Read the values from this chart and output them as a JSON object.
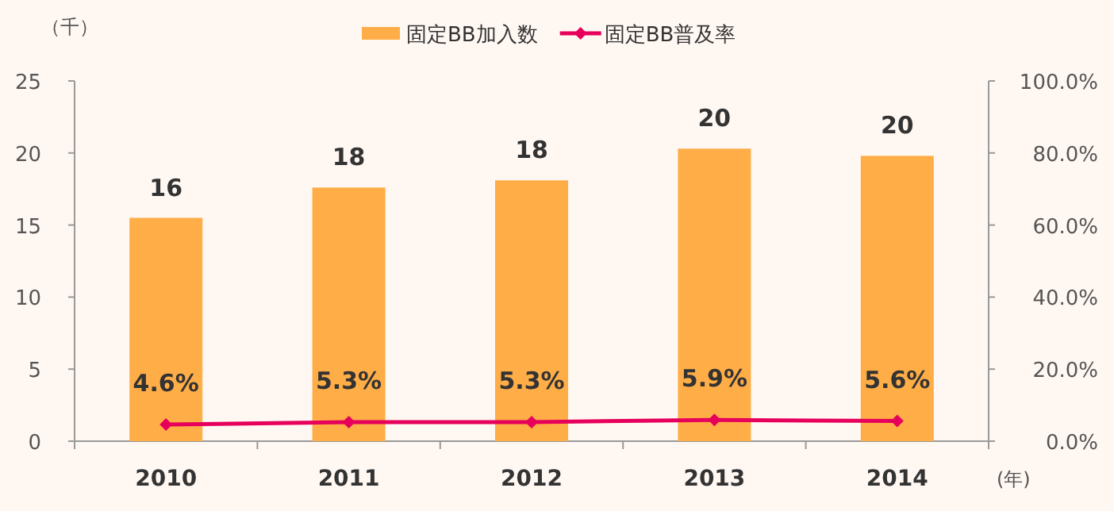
{
  "chart_data": {
    "type": "bar",
    "categories": [
      "2010",
      "2011",
      "2012",
      "2013",
      "2014"
    ],
    "ylabel": "（千）",
    "xlabel": "(年)",
    "series": [
      {
        "name": "固定BB加入数",
        "color": "#ffad47",
        "values": [
          15.5,
          17.6,
          18.1,
          20.3,
          19.8
        ],
        "value_labels": [
          "16",
          "18",
          "18",
          "20",
          "20"
        ]
      },
      {
        "name": "固定BB普及率",
        "type": "line",
        "axis": "y2",
        "color": "#e6005c",
        "marker": "diamond",
        "values": [
          4.6,
          5.3,
          5.3,
          5.9,
          5.6
        ],
        "value_labels": [
          "4.6%",
          "5.3%",
          "5.3%",
          "5.9%",
          "5.6%"
        ]
      }
    ],
    "ylim": [
      0,
      25
    ],
    "yticks": [
      0,
      5,
      10,
      15,
      20,
      25
    ],
    "y2lim": [
      0,
      100
    ],
    "y2ticks": [
      {
        "value": 0,
        "label": "0.0%"
      },
      {
        "value": 20,
        "label": "20.0%"
      },
      {
        "value": 40,
        "label": "40.0%"
      },
      {
        "value": 60,
        "label": "60.0%"
      },
      {
        "value": 80,
        "label": "80.0%"
      },
      {
        "value": 100,
        "label": "100.0%"
      }
    ],
    "grid": false,
    "legend": "top"
  }
}
